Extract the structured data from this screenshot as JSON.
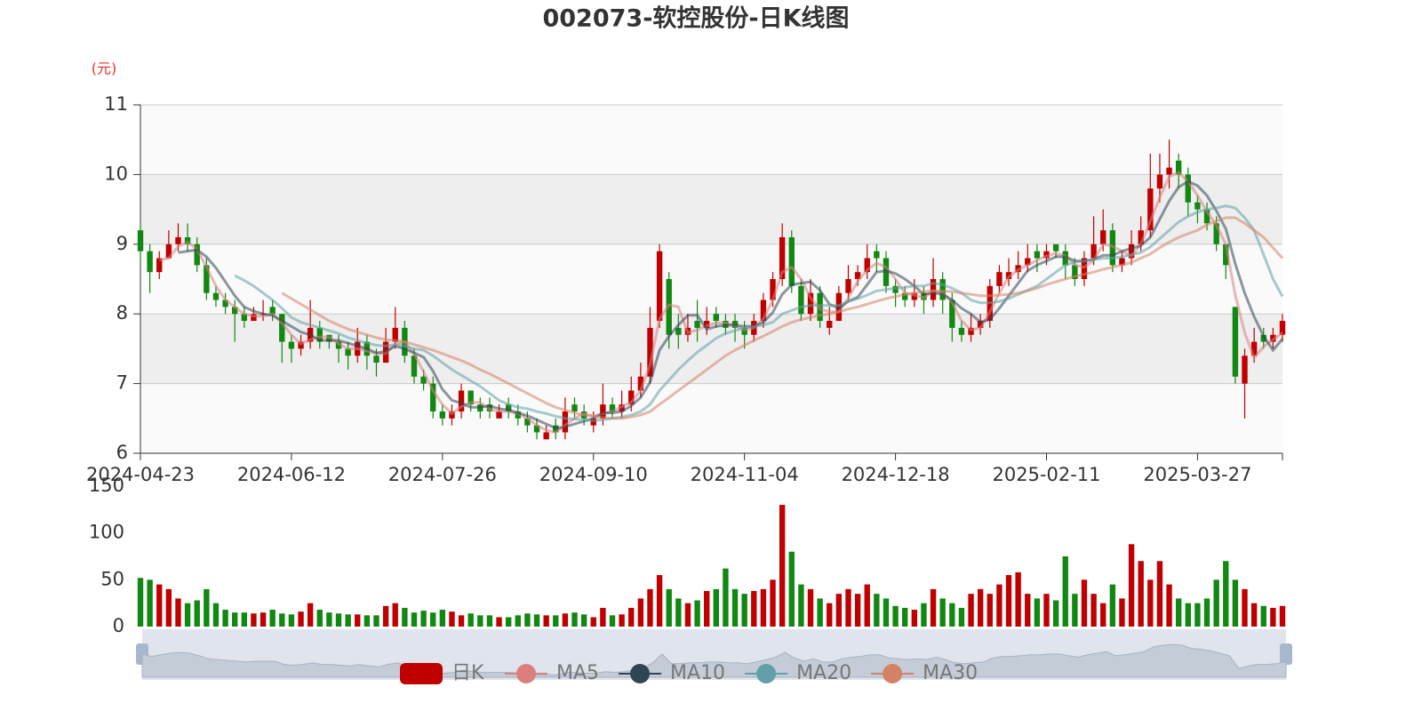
{
  "chart_data": {
    "type": "candlestick",
    "title": "002073-软控股份-日K线图",
    "y_unit": "(元)",
    "candle_name": "日K",
    "up_color": "#c00000",
    "down_color": "#118811",
    "grid": true,
    "split_area": true,
    "ylim": [
      6,
      11
    ],
    "yticks": [
      6,
      7,
      8,
      9,
      10,
      11
    ],
    "categories": [
      "2024-04-23",
      null,
      null,
      null,
      null,
      null,
      null,
      null,
      null,
      null,
      null,
      null,
      null,
      null,
      null,
      null,
      "2024-06-12",
      null,
      null,
      null,
      null,
      null,
      null,
      null,
      null,
      null,
      null,
      null,
      null,
      null,
      null,
      null,
      "2024-07-26",
      null,
      null,
      null,
      null,
      null,
      null,
      null,
      null,
      null,
      null,
      null,
      null,
      null,
      null,
      null,
      "2024-09-10",
      null,
      null,
      null,
      null,
      null,
      null,
      null,
      null,
      null,
      null,
      null,
      null,
      null,
      null,
      null,
      "2024-11-04",
      null,
      null,
      null,
      null,
      null,
      null,
      null,
      null,
      null,
      null,
      null,
      null,
      null,
      null,
      null,
      "2024-12-18",
      null,
      null,
      null,
      null,
      null,
      null,
      null,
      null,
      null,
      null,
      null,
      null,
      null,
      null,
      null,
      "2025-02-11",
      null,
      null,
      null,
      null,
      null,
      null,
      null,
      null,
      null,
      null,
      null,
      null,
      null,
      null,
      null,
      "2025-03-27",
      null,
      null,
      null,
      null,
      null,
      null,
      null,
      null,
      null
    ],
    "ohlc": [
      [
        9.2,
        8.9,
        8.7,
        9.3
      ],
      [
        8.9,
        8.6,
        8.3,
        9.0
      ],
      [
        8.6,
        8.8,
        8.5,
        8.9
      ],
      [
        8.8,
        9.0,
        8.8,
        9.2
      ],
      [
        9.0,
        9.1,
        8.9,
        9.3
      ],
      [
        9.1,
        9.0,
        8.9,
        9.3
      ],
      [
        9.0,
        8.7,
        8.6,
        9.1
      ],
      [
        8.7,
        8.3,
        8.2,
        8.8
      ],
      [
        8.3,
        8.2,
        8.1,
        8.4
      ],
      [
        8.2,
        8.1,
        8.0,
        8.3
      ],
      [
        8.1,
        8.0,
        7.6,
        8.2
      ],
      [
        8.0,
        7.9,
        7.8,
        8.1
      ],
      [
        7.9,
        8.0,
        7.9,
        8.1
      ],
      [
        8.0,
        8.0,
        7.9,
        8.2
      ],
      [
        8.1,
        8.0,
        7.9,
        8.2
      ],
      [
        8.0,
        7.6,
        7.3,
        8.0
      ],
      [
        7.6,
        7.5,
        7.3,
        7.7
      ],
      [
        7.5,
        7.6,
        7.4,
        7.7
      ],
      [
        7.6,
        7.8,
        7.5,
        8.2
      ],
      [
        7.8,
        7.6,
        7.5,
        7.9
      ],
      [
        7.7,
        7.6,
        7.5,
        7.7
      ],
      [
        7.6,
        7.5,
        7.3,
        7.7
      ],
      [
        7.5,
        7.4,
        7.2,
        7.6
      ],
      [
        7.4,
        7.6,
        7.3,
        7.8
      ],
      [
        7.6,
        7.4,
        7.2,
        7.7
      ],
      [
        7.4,
        7.3,
        7.1,
        7.5
      ],
      [
        7.3,
        7.6,
        7.3,
        7.8
      ],
      [
        7.6,
        7.8,
        7.5,
        8.1
      ],
      [
        7.8,
        7.4,
        7.3,
        7.9
      ],
      [
        7.4,
        7.1,
        7.0,
        7.5
      ],
      [
        7.1,
        7.0,
        6.9,
        7.2
      ],
      [
        7.0,
        6.6,
        6.5,
        7.1
      ],
      [
        6.6,
        6.5,
        6.4,
        6.7
      ],
      [
        6.5,
        6.6,
        6.4,
        6.7
      ],
      [
        6.6,
        6.9,
        6.5,
        7.0
      ],
      [
        6.9,
        6.7,
        6.6,
        6.9
      ],
      [
        6.7,
        6.6,
        6.5,
        6.8
      ],
      [
        6.7,
        6.6,
        6.5,
        6.8
      ],
      [
        6.5,
        6.6,
        6.5,
        6.7
      ],
      [
        6.7,
        6.6,
        6.5,
        6.8
      ],
      [
        6.6,
        6.5,
        6.4,
        6.7
      ],
      [
        6.5,
        6.4,
        6.3,
        6.6
      ],
      [
        6.4,
        6.3,
        6.2,
        6.5
      ],
      [
        6.2,
        6.3,
        6.2,
        6.4
      ],
      [
        6.4,
        6.3,
        6.2,
        6.5
      ],
      [
        6.3,
        6.6,
        6.2,
        6.8
      ],
      [
        6.7,
        6.6,
        6.5,
        6.8
      ],
      [
        6.6,
        6.5,
        6.4,
        6.7
      ],
      [
        6.4,
        6.5,
        6.3,
        6.6
      ],
      [
        6.5,
        6.7,
        6.4,
        7.0
      ],
      [
        6.7,
        6.6,
        6.5,
        6.8
      ],
      [
        6.6,
        6.7,
        6.5,
        6.9
      ],
      [
        6.7,
        6.9,
        6.6,
        7.1
      ],
      [
        6.9,
        7.1,
        6.8,
        7.3
      ],
      [
        7.1,
        7.8,
        7.0,
        8.1
      ],
      [
        7.9,
        8.9,
        7.8,
        9.0
      ],
      [
        8.5,
        7.7,
        7.5,
        8.6
      ],
      [
        7.8,
        7.7,
        7.5,
        8.0
      ],
      [
        7.7,
        7.8,
        7.6,
        8.0
      ],
      [
        7.9,
        7.8,
        7.6,
        8.2
      ],
      [
        7.8,
        7.9,
        7.7,
        8.1
      ],
      [
        8.0,
        7.9,
        7.8,
        8.1
      ],
      [
        7.9,
        7.8,
        7.7,
        8.0
      ],
      [
        7.9,
        7.8,
        7.6,
        8.0
      ],
      [
        7.8,
        7.7,
        7.5,
        7.9
      ],
      [
        7.7,
        7.9,
        7.6,
        8.0
      ],
      [
        7.9,
        8.2,
        7.8,
        8.3
      ],
      [
        8.2,
        8.5,
        8.1,
        8.6
      ],
      [
        8.5,
        9.1,
        8.4,
        9.3
      ],
      [
        9.1,
        8.4,
        8.3,
        9.2
      ],
      [
        8.4,
        8.0,
        7.9,
        8.5
      ],
      [
        8.0,
        8.3,
        7.9,
        8.5
      ],
      [
        8.3,
        7.9,
        7.8,
        8.4
      ],
      [
        7.8,
        7.9,
        7.7,
        8.1
      ],
      [
        7.9,
        8.3,
        7.9,
        8.4
      ],
      [
        8.3,
        8.5,
        8.2,
        8.7
      ],
      [
        8.5,
        8.6,
        8.4,
        8.7
      ],
      [
        8.6,
        8.8,
        8.5,
        9.0
      ],
      [
        8.9,
        8.8,
        8.6,
        9.0
      ],
      [
        8.8,
        8.4,
        8.3,
        8.9
      ],
      [
        8.4,
        8.3,
        8.1,
        8.5
      ],
      [
        8.3,
        8.2,
        8.1,
        8.4
      ],
      [
        8.2,
        8.3,
        8.1,
        8.5
      ],
      [
        8.3,
        8.2,
        8.0,
        8.4
      ],
      [
        8.2,
        8.5,
        8.1,
        8.8
      ],
      [
        8.5,
        8.2,
        8.0,
        8.6
      ],
      [
        8.2,
        7.8,
        7.6,
        8.3
      ],
      [
        7.8,
        7.7,
        7.6,
        7.9
      ],
      [
        7.7,
        7.8,
        7.6,
        8.0
      ],
      [
        7.8,
        7.9,
        7.7,
        8.0
      ],
      [
        7.9,
        8.4,
        7.8,
        8.5
      ],
      [
        8.4,
        8.6,
        8.3,
        8.7
      ],
      [
        8.5,
        8.6,
        8.4,
        8.8
      ],
      [
        8.6,
        8.7,
        8.5,
        8.9
      ],
      [
        8.7,
        8.8,
        8.6,
        9.0
      ],
      [
        8.9,
        8.8,
        8.6,
        9.0
      ],
      [
        8.8,
        8.9,
        8.7,
        9.0
      ],
      [
        9.0,
        8.9,
        8.8,
        9.0
      ],
      [
        8.9,
        8.7,
        8.5,
        9.0
      ],
      [
        8.7,
        8.5,
        8.4,
        8.8
      ],
      [
        8.5,
        8.8,
        8.4,
        8.9
      ],
      [
        8.8,
        9.0,
        8.7,
        9.4
      ],
      [
        9.0,
        9.2,
        8.9,
        9.5
      ],
      [
        9.2,
        8.7,
        8.6,
        9.3
      ],
      [
        8.7,
        8.8,
        8.6,
        8.9
      ],
      [
        8.8,
        9.0,
        8.7,
        9.2
      ],
      [
        9.0,
        9.2,
        8.9,
        9.4
      ],
      [
        9.2,
        9.8,
        9.1,
        10.3
      ],
      [
        9.8,
        10.0,
        9.6,
        10.3
      ],
      [
        10.0,
        10.1,
        9.8,
        10.5
      ],
      [
        10.2,
        10.0,
        9.8,
        10.3
      ],
      [
        10.0,
        9.6,
        9.4,
        10.1
      ],
      [
        9.6,
        9.5,
        9.3,
        9.7
      ],
      [
        9.5,
        9.3,
        9.2,
        9.6
      ],
      [
        9.3,
        9.0,
        8.9,
        9.4
      ],
      [
        9.0,
        8.7,
        8.5,
        9.0
      ],
      [
        8.1,
        7.1,
        7.0,
        8.1
      ],
      [
        7.0,
        7.4,
        6.5,
        7.5
      ],
      [
        7.4,
        7.6,
        7.3,
        7.8
      ],
      [
        7.7,
        7.6,
        7.5,
        7.8
      ],
      [
        7.6,
        7.7,
        7.5,
        7.8
      ],
      [
        7.7,
        7.9,
        7.6,
        8.0
      ]
    ],
    "series": [
      {
        "name": "MA5",
        "color": "#d9807e",
        "values": [
          null,
          null,
          8.77,
          8.8,
          8.97,
          9.03,
          8.93,
          8.67,
          8.4,
          8.2,
          8.1,
          8.0,
          7.97,
          7.97,
          8.0,
          7.87,
          7.7,
          7.57,
          7.63,
          7.67,
          7.67,
          7.57,
          7.5,
          7.5,
          7.47,
          7.43,
          7.43,
          7.57,
          7.6,
          7.43,
          7.17,
          6.9,
          6.7,
          6.57,
          6.67,
          6.73,
          6.73,
          6.63,
          6.6,
          6.6,
          6.57,
          6.5,
          6.4,
          6.33,
          6.3,
          6.4,
          6.5,
          6.57,
          6.53,
          6.57,
          6.6,
          6.67,
          6.73,
          6.9,
          7.27,
          7.93,
          8.13,
          8.1,
          7.73,
          7.77,
          7.83,
          7.87,
          7.87,
          7.83,
          7.77,
          7.8,
          7.93,
          8.2,
          8.6,
          8.67,
          8.5,
          8.23,
          8.07,
          8.03,
          8.03,
          8.23,
          8.47,
          8.63,
          8.73,
          8.67,
          8.5,
          8.3,
          8.27,
          8.23,
          8.33,
          8.3,
          8.17,
          7.9,
          7.77,
          7.8,
          8.03,
          8.3,
          8.53,
          8.63,
          8.7,
          8.77,
          8.83,
          8.87,
          8.83,
          8.7,
          8.67,
          8.77,
          9.0,
          8.97,
          8.9,
          8.83,
          9.0,
          9.33,
          9.67,
          9.97,
          10.03,
          9.9,
          9.7,
          9.47,
          9.27,
          9.0,
          8.27,
          7.73,
          7.37,
          7.53,
          7.63,
          7.73
        ]
      },
      {
        "name": "MA10",
        "color": "#2f4554",
        "values": [
          null,
          null,
          null,
          null,
          8.88,
          8.9,
          8.92,
          8.82,
          8.66,
          8.46,
          8.26,
          8.1,
          8.04,
          8.0,
          7.98,
          7.9,
          7.82,
          7.74,
          7.7,
          7.62,
          7.62,
          7.62,
          7.58,
          7.54,
          7.5,
          7.44,
          7.46,
          7.54,
          7.5,
          7.44,
          7.38,
          7.18,
          6.92,
          6.76,
          6.72,
          6.66,
          6.66,
          6.68,
          6.64,
          6.62,
          6.58,
          6.54,
          6.48,
          6.42,
          6.36,
          6.38,
          6.42,
          6.46,
          6.5,
          6.58,
          6.58,
          6.6,
          6.68,
          6.8,
          7.02,
          7.48,
          7.68,
          7.84,
          7.98,
          7.98,
          7.78,
          7.82,
          7.84,
          7.84,
          7.82,
          7.82,
          7.88,
          8.02,
          8.28,
          8.42,
          8.44,
          8.46,
          8.34,
          8.14,
          8.08,
          8.18,
          8.24,
          8.42,
          8.6,
          8.62,
          8.58,
          8.5,
          8.4,
          8.28,
          8.3,
          8.28,
          8.2,
          8.08,
          8.0,
          7.88,
          7.92,
          8.08,
          8.26,
          8.44,
          8.62,
          8.7,
          8.76,
          8.82,
          8.82,
          8.76,
          8.76,
          8.78,
          8.84,
          8.84,
          8.9,
          8.94,
          8.98,
          9.1,
          9.36,
          9.62,
          9.82,
          9.9,
          9.84,
          9.7,
          9.48,
          9.22,
          8.72,
          8.3,
          7.96,
          7.68,
          7.48,
          7.64
        ]
      },
      {
        "name": "MA20",
        "color": "#61a0a8",
        "values": [
          null,
          null,
          null,
          null,
          null,
          null,
          null,
          null,
          null,
          null,
          8.55,
          8.48,
          8.4,
          8.3,
          8.2,
          8.08,
          7.95,
          7.88,
          7.84,
          7.8,
          7.76,
          7.72,
          7.66,
          7.62,
          7.58,
          7.55,
          7.54,
          7.56,
          7.54,
          7.5,
          7.48,
          7.4,
          7.3,
          7.2,
          7.12,
          7.04,
          6.96,
          6.86,
          6.76,
          6.7,
          6.66,
          6.64,
          6.6,
          6.57,
          6.53,
          6.5,
          6.49,
          6.48,
          6.47,
          6.48,
          6.5,
          6.52,
          6.55,
          6.6,
          6.7,
          6.9,
          7.05,
          7.2,
          7.33,
          7.45,
          7.55,
          7.65,
          7.72,
          7.76,
          7.8,
          7.82,
          7.84,
          7.88,
          8.0,
          8.05,
          8.1,
          8.12,
          8.12,
          8.12,
          8.12,
          8.18,
          8.22,
          8.27,
          8.33,
          8.35,
          8.37,
          8.38,
          8.4,
          8.4,
          8.44,
          8.42,
          8.37,
          8.3,
          8.2,
          8.16,
          8.16,
          8.18,
          8.22,
          8.28,
          8.34,
          8.4,
          8.5,
          8.6,
          8.7,
          8.74,
          8.76,
          8.78,
          8.8,
          8.8,
          8.82,
          8.85,
          8.88,
          8.96,
          9.08,
          9.2,
          9.32,
          9.4,
          9.46,
          9.5,
          9.52,
          9.55,
          9.52,
          9.38,
          9.2,
          8.85,
          8.5,
          8.25
        ]
      },
      {
        "name": "MA30",
        "color": "#d48265",
        "values": [
          null,
          null,
          null,
          null,
          null,
          null,
          null,
          null,
          null,
          null,
          null,
          null,
          null,
          null,
          null,
          8.3,
          8.22,
          8.14,
          8.06,
          7.98,
          7.9,
          7.84,
          7.78,
          7.74,
          7.7,
          7.66,
          7.63,
          7.62,
          7.6,
          7.56,
          7.52,
          7.48,
          7.43,
          7.38,
          7.33,
          7.27,
          7.2,
          7.14,
          7.07,
          7.0,
          6.93,
          6.86,
          6.79,
          6.72,
          6.66,
          6.62,
          6.58,
          6.55,
          6.53,
          6.51,
          6.5,
          6.5,
          6.52,
          6.55,
          6.6,
          6.7,
          6.8,
          6.9,
          7.0,
          7.1,
          7.2,
          7.3,
          7.4,
          7.48,
          7.55,
          7.62,
          7.68,
          7.75,
          7.82,
          7.88,
          7.92,
          7.95,
          7.98,
          8.0,
          8.03,
          8.07,
          8.1,
          8.14,
          8.18,
          8.22,
          8.25,
          8.28,
          8.3,
          8.32,
          8.33,
          8.33,
          8.32,
          8.3,
          8.28,
          8.26,
          8.26,
          8.27,
          8.28,
          8.3,
          8.33,
          8.37,
          8.42,
          8.46,
          8.5,
          8.54,
          8.57,
          8.6,
          8.64,
          8.67,
          8.7,
          8.74,
          8.8,
          8.86,
          8.95,
          9.03,
          9.1,
          9.15,
          9.2,
          9.28,
          9.33,
          9.38,
          9.38,
          9.3,
          9.2,
          9.1,
          8.95,
          8.8
        ]
      }
    ],
    "volume": {
      "ylim": [
        0,
        150
      ],
      "yticks": [
        0,
        50,
        100,
        150
      ],
      "values": [
        52,
        50,
        45,
        40,
        30,
        25,
        28,
        40,
        25,
        18,
        15,
        15,
        14,
        15,
        18,
        14,
        13,
        16,
        25,
        18,
        15,
        14,
        13,
        13,
        12,
        12,
        22,
        25,
        20,
        15,
        17,
        15,
        18,
        16,
        12,
        14,
        12,
        12,
        10,
        10,
        12,
        14,
        13,
        12,
        12,
        14,
        15,
        13,
        10,
        20,
        12,
        13,
        20,
        30,
        40,
        55,
        40,
        30,
        25,
        28,
        38,
        40,
        62,
        40,
        35,
        38,
        40,
        50,
        130,
        80,
        45,
        40,
        30,
        25,
        35,
        40,
        35,
        45,
        35,
        30,
        22,
        20,
        18,
        25,
        40,
        30,
        25,
        20,
        35,
        40,
        35,
        45,
        55,
        58,
        35,
        30,
        35,
        28,
        75,
        35,
        50,
        35,
        25,
        45,
        30,
        88,
        70,
        50,
        70,
        45,
        30,
        25,
        25,
        30,
        50,
        70,
        50,
        40,
        25,
        22,
        20,
        22
      ]
    }
  }
}
